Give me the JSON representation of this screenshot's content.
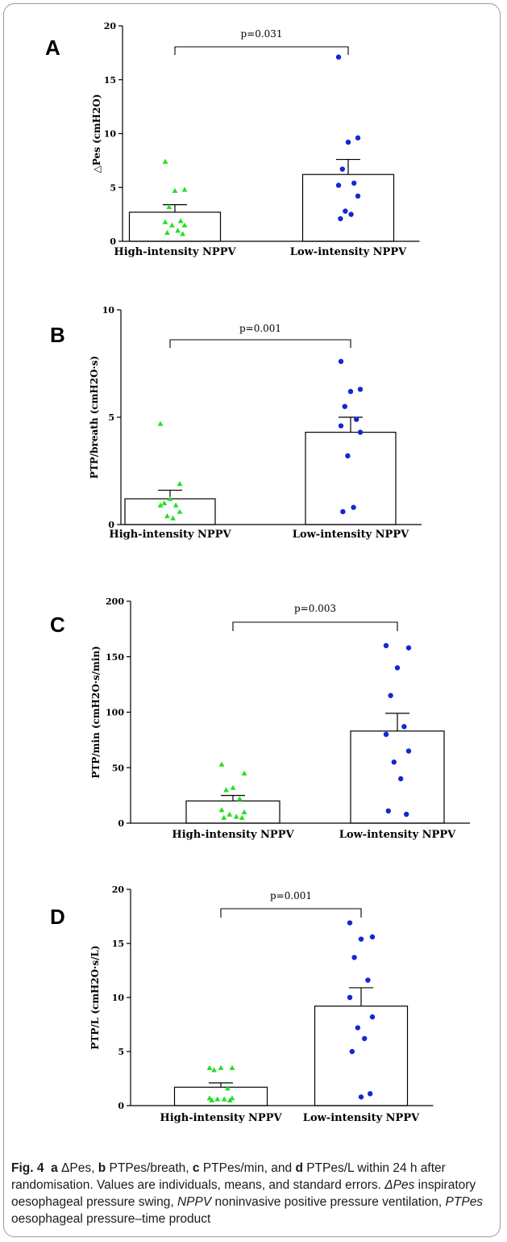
{
  "chart_data": [
    {
      "type": "bar",
      "panel": "A",
      "ylabel": "△Pes (cmH2O)",
      "ylim": [
        0,
        20
      ],
      "yticks": [
        0,
        5,
        10,
        15,
        20
      ],
      "categories": [
        "High-intensity NPPV",
        "Low-intensity NPPV"
      ],
      "values": [
        2.7,
        6.2
      ],
      "se": [
        0.7,
        1.4
      ],
      "points": [
        [
          7.4,
          4.8,
          4.7,
          3.2,
          1.9,
          1.8,
          1.5,
          1.5,
          1.0,
          0.8,
          0.7
        ],
        [
          17.1,
          9.6,
          9.2,
          6.7,
          5.4,
          5.2,
          4.2,
          2.8,
          2.5,
          2.1
        ]
      ],
      "annotation": "p=0.031"
    },
    {
      "type": "bar",
      "panel": "B",
      "ylabel": "PTP/breath (cmH2O·s)",
      "ylim": [
        0,
        10
      ],
      "yticks": [
        0,
        5,
        10
      ],
      "categories": [
        "High-intensity NPPV",
        "Low-intensity NPPV"
      ],
      "values": [
        1.2,
        4.3
      ],
      "se": [
        0.4,
        0.7
      ],
      "points": [
        [
          4.7,
          1.9,
          1.2,
          1.0,
          0.9,
          0.9,
          0.6,
          0.4,
          0.3
        ],
        [
          7.6,
          6.3,
          6.2,
          5.5,
          4.9,
          4.6,
          4.3,
          3.2,
          0.8,
          0.6
        ]
      ],
      "annotation": "p=0.001"
    },
    {
      "type": "bar",
      "panel": "C",
      "ylabel": "PTP/min (cmH2O·s/min)",
      "ylim": [
        0,
        200
      ],
      "yticks": [
        0,
        50,
        100,
        150,
        200
      ],
      "categories": [
        "High-intensity NPPV",
        "Low-intensity NPPV"
      ],
      "values": [
        20,
        83
      ],
      "se": [
        5,
        16
      ],
      "points": [
        [
          53,
          45,
          32,
          30,
          22,
          12,
          10,
          8,
          6,
          5,
          5
        ],
        [
          160,
          158,
          140,
          115,
          87,
          80,
          65,
          55,
          40,
          11,
          8
        ]
      ],
      "annotation": "p=0.003"
    },
    {
      "type": "bar",
      "panel": "D",
      "ylabel": "PTP/L (cmH2O·s/L)",
      "ylim": [
        0,
        20
      ],
      "yticks": [
        0,
        5,
        10,
        15,
        20
      ],
      "categories": [
        "High-intensity NPPV",
        "Low-intensity NPPV"
      ],
      "values": [
        1.7,
        9.2
      ],
      "se": [
        0.4,
        1.7
      ],
      "points": [
        [
          3.5,
          3.5,
          3.5,
          3.3,
          1.6,
          0.7,
          0.7,
          0.6,
          0.6,
          0.5,
          0.5
        ],
        [
          16.9,
          15.6,
          15.4,
          13.7,
          11.6,
          10.0,
          8.2,
          7.2,
          6.2,
          5.0,
          1.1,
          0.8
        ]
      ],
      "annotation": "p=0.001"
    }
  ],
  "colors": {
    "high_intensity": "#22e022",
    "low_intensity": "#1426d6",
    "bar_outline": "#000000"
  },
  "caption": {
    "label": "Fig. 4",
    "a": "a",
    "a_text": "ΔPes,",
    "b": "b",
    "b_text": "PTPes/breath,",
    "c": "c",
    "c_text": "PTPes/min, and",
    "d": "d",
    "d_text": "PTPes/L within 24 h after randomisation. Values are individuals, means, and standard errors.",
    "abbr1": "ΔPes",
    "abbr1_def": "inspiratory oesophageal pressure swing,",
    "abbr2": "NPPV",
    "abbr2_def": "noninvasive positive pressure ventilation,",
    "abbr3": "PTPes",
    "abbr3_def": "oesophageal pressure–time product"
  }
}
